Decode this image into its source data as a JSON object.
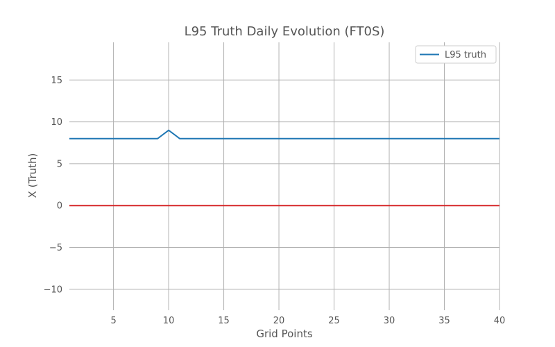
{
  "chart_data": {
    "type": "line",
    "title": "L95 Truth Daily Evolution (FT0S)",
    "xlabel": "Grid Points",
    "ylabel": "X (Truth)",
    "xlim": [
      1,
      40
    ],
    "ylim": [
      -12.5,
      19.5
    ],
    "xticks": [
      5,
      10,
      15,
      20,
      25,
      30,
      35,
      40
    ],
    "yticks": [
      -10,
      -5,
      0,
      5,
      10,
      15
    ],
    "ytick_labels": [
      "−10",
      "−5",
      "0",
      "5",
      "10",
      "15"
    ],
    "grid": true,
    "legend_position": "top-right",
    "series": [
      {
        "name": "L95 truth",
        "color": "#1f77b4",
        "x": [
          1,
          2,
          3,
          4,
          5,
          6,
          7,
          8,
          9,
          10,
          11,
          12,
          13,
          14,
          15,
          16,
          17,
          18,
          19,
          20,
          21,
          22,
          23,
          24,
          25,
          26,
          27,
          28,
          29,
          30,
          31,
          32,
          33,
          34,
          35,
          36,
          37,
          38,
          39,
          40
        ],
        "y": [
          8,
          8,
          8,
          8,
          8,
          8,
          8,
          8,
          8,
          9,
          8,
          8,
          8,
          8,
          8,
          8,
          8,
          8,
          8,
          8,
          8,
          8,
          8,
          8,
          8,
          8,
          8,
          8,
          8,
          8,
          8,
          8,
          8,
          8,
          8,
          8,
          8,
          8,
          8,
          8
        ]
      },
      {
        "color": "#d62728",
        "x": [
          1,
          40
        ],
        "y": [
          0,
          0
        ]
      }
    ]
  }
}
